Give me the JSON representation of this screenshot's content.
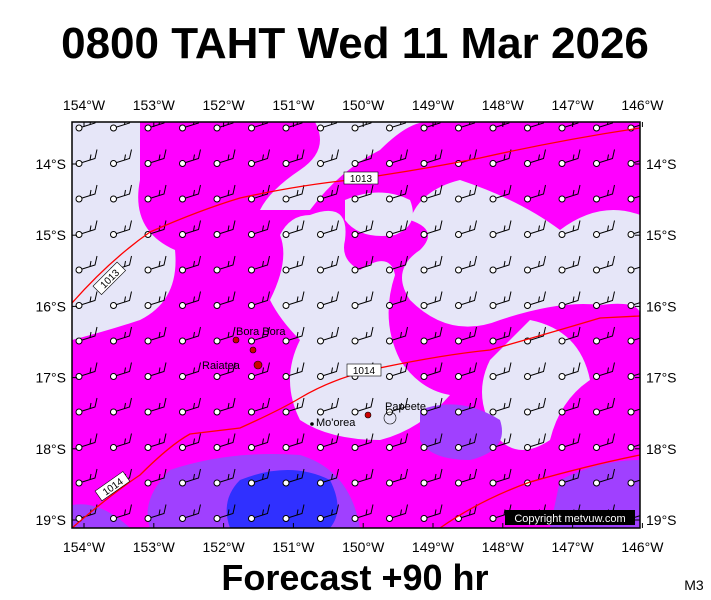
{
  "title": "0800 TAHT Wed 11 Mar 2026",
  "longitude_labels": [
    "154°W",
    "153°W",
    "152°W",
    "151°W",
    "150°W",
    "149°W",
    "148°W",
    "147°W",
    "146°W"
  ],
  "latitude_labels": [
    "14°S",
    "15°S",
    "16°S",
    "17°S",
    "18°S",
    "19°S"
  ],
  "places": [
    {
      "label": "Bora Bora"
    },
    {
      "label": "Raiatea"
    },
    {
      "label": "Mo'orea"
    },
    {
      "label": "Papeete"
    }
  ],
  "isobars": [
    {
      "label": "1013"
    },
    {
      "label": "1013"
    },
    {
      "label": "1014"
    },
    {
      "label": "1014"
    }
  ],
  "copyright": "Copyright metvuw.com",
  "footer": "Forecast +90 hr",
  "model": "M3"
}
